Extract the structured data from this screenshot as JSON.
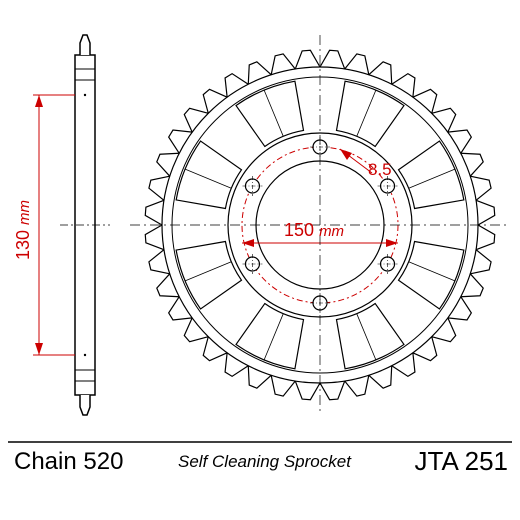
{
  "diagram": {
    "type": "engineering-drawing",
    "background_color": "#ffffff",
    "line_color": "#000000",
    "dimension_color": "#cc0000",
    "title_chain": "Chain 520",
    "subtitle": "Self Cleaning Sprocket",
    "part_number": "JTA 251",
    "side_view": {
      "outer_height_mm": "130",
      "unit_label": "mm",
      "dimension_fontsize": 18
    },
    "front_view": {
      "bolt_hole_diameter": "8.5",
      "bolt_circle_diameter": "150",
      "unit_label": "mm",
      "dimension_fontsize": 18,
      "tooth_count": 40
    },
    "fonts": {
      "label_large": 24,
      "label_medium": 19,
      "label_italic": 17
    },
    "colors": {
      "stroke_main": "#000000",
      "stroke_dim": "#cc0000",
      "fill_bg": "#ffffff"
    }
  }
}
